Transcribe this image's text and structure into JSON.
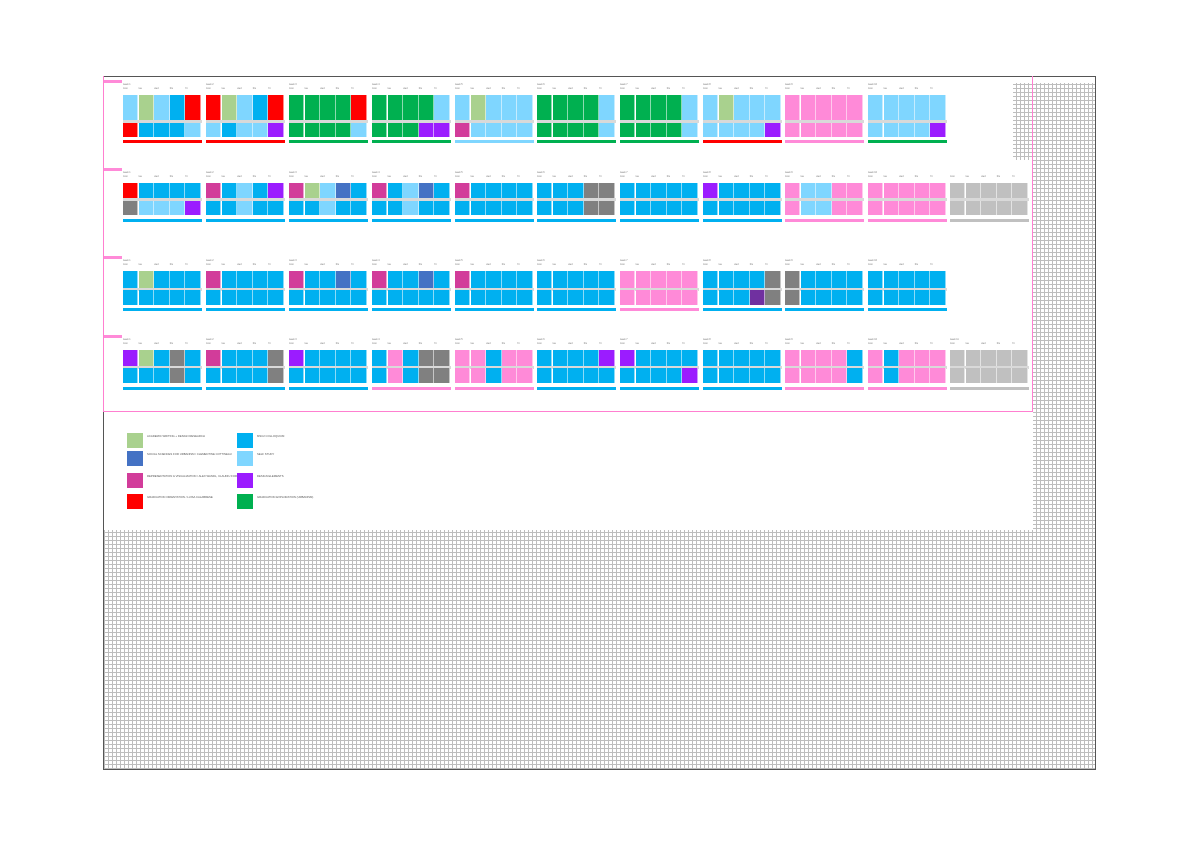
{
  "colors": {
    "A": "#a9d18e",
    "S": "#4472c4",
    "R": "#d23c9a",
    "G": "#ff0000",
    "C": "#00b0f0",
    "L": "#7fd6ff",
    "D": "#9b1cff",
    "E": "#00b050",
    "P": "#ff8ad8",
    "X": "#808080",
    "Y": "#c0c0c0",
    "V": "#7030a0"
  },
  "days": [
    "mon",
    "tue",
    "wed",
    "thu",
    "fri"
  ],
  "rows": [
    {
      "weeks": [
        {
          "label": "week 1",
          "top": "LALCG",
          "bottom": "GCCCL",
          "bar": "G"
        },
        {
          "label": "week 2",
          "top": "GALCG",
          "bottom": "LCLLD",
          "bar": "G"
        },
        {
          "label": "week 3",
          "top": "EEEEG",
          "bottom": "EEEEL",
          "bar": "E"
        },
        {
          "label": "week 4",
          "top": "EEEEL",
          "bottom": "EEEDD",
          "bar": "E"
        },
        {
          "label": "week 5",
          "top": "LALLL",
          "bottom": "RLLLL",
          "bar": "L"
        },
        {
          "label": "week 6",
          "top": "EEEEL",
          "bottom": "EEEEL",
          "bar": "E"
        },
        {
          "label": "week 7",
          "top": "EEEEL",
          "bottom": "EEEEL",
          "bar": "E"
        },
        {
          "label": "week 8",
          "top": "LALLL",
          "bottom": "LLLLD",
          "bar": "G"
        },
        {
          "label": "week 9",
          "top": "PPPPP",
          "bottom": "PPPPP",
          "bar": "P"
        },
        {
          "label": "week 10",
          "top": "LLLLL",
          "bottom": "LLLLD",
          "bar": "E"
        }
      ]
    },
    {
      "weeks": [
        {
          "label": "week 1",
          "top": "GCCCC",
          "bottom": "XLLLD",
          "bar": "C"
        },
        {
          "label": "week 2",
          "top": "RCLCD",
          "bottom": "CCLCC",
          "bar": "C"
        },
        {
          "label": "week 3",
          "top": "RALSC",
          "bottom": "CCLCC",
          "bar": "C"
        },
        {
          "label": "week 4",
          "top": "RCLSC",
          "bottom": "CCLCC",
          "bar": "C"
        },
        {
          "label": "week 5",
          "top": "RCCCC",
          "bottom": "CCCCC",
          "bar": "C"
        },
        {
          "label": "week 6",
          "top": "CCCXX",
          "bottom": "CCCXX",
          "bar": "C"
        },
        {
          "label": "week 7",
          "top": "CCCCC",
          "bottom": "CCCCC",
          "bar": "C"
        },
        {
          "label": "week 8",
          "top": "DCCCC",
          "bottom": "CCCCC",
          "bar": "C"
        },
        {
          "label": "week 9",
          "top": "PLLPP",
          "bottom": "PLLPP",
          "bar": "P"
        },
        {
          "label": "week 10",
          "top": "PPPPP",
          "bottom": "PPPPP",
          "bar": "P"
        },
        {
          "label": "",
          "top": "YYYYY",
          "bottom": "YYYYY",
          "bar": "Y"
        }
      ]
    },
    {
      "weeks": [
        {
          "label": "week 1",
          "top": "CACCC",
          "bottom": "CCCCC",
          "bar": "C"
        },
        {
          "label": "week 2",
          "top": "RCCCC",
          "bottom": "CCCCC",
          "bar": "C"
        },
        {
          "label": "week 3",
          "top": "RCCSC",
          "bottom": "CCCCC",
          "bar": "C"
        },
        {
          "label": "week 4",
          "top": "RCCSC",
          "bottom": "CCCCC",
          "bar": "C"
        },
        {
          "label": "week 5",
          "top": "RCCCC",
          "bottom": "CCCCC",
          "bar": "C"
        },
        {
          "label": "week 6",
          "top": "CCCCC",
          "bottom": "CCCCC",
          "bar": "C"
        },
        {
          "label": "week 7",
          "top": "PPPPP",
          "bottom": "PPPPP",
          "bar": "P"
        },
        {
          "label": "week 8",
          "top": "CCCCX",
          "bottom": "CCCVX",
          "bar": "C"
        },
        {
          "label": "week 9",
          "top": "XCCCC",
          "bottom": "XCCCC",
          "bar": "C"
        },
        {
          "label": "week 10",
          "top": "CCCCC",
          "bottom": "CCCCC",
          "bar": "C"
        }
      ]
    },
    {
      "weeks": [
        {
          "label": "week 1",
          "top": "DACXC",
          "bottom": "CCCXC",
          "bar": "C"
        },
        {
          "label": "week 2",
          "top": "RCCCX",
          "bottom": "CCCCX",
          "bar": "C"
        },
        {
          "label": "week 3",
          "top": "DCCCC",
          "bottom": "CCCCC",
          "bar": "C"
        },
        {
          "label": "week 4",
          "top": "CPCXX",
          "bottom": "CPCXX",
          "bar": "P"
        },
        {
          "label": "week 5",
          "top": "PPCPP",
          "bottom": "PPCPP",
          "bar": "P"
        },
        {
          "label": "week 6",
          "top": "CCCCD",
          "bottom": "CCCCC",
          "bar": "C"
        },
        {
          "label": "week 7",
          "top": "DCCCC",
          "bottom": "CCCCD",
          "bar": "C"
        },
        {
          "label": "week 8",
          "top": "CCCCC",
          "bottom": "CCCCC",
          "bar": "C"
        },
        {
          "label": "week 9",
          "top": "PPPPC",
          "bottom": "PPPPC",
          "bar": "P"
        },
        {
          "label": "week 10",
          "top": "PCPPP",
          "bottom": "PCPPP",
          "bar": "P"
        },
        {
          "label": "week 11",
          "top": "YYYYY",
          "bottom": "YYYYY",
          "bar": "Y"
        }
      ]
    }
  ],
  "legend": [
    {
      "code": "A",
      "label": "ACADEMIC WRITING + DESIGN RESEARCH"
    },
    {
      "code": "S",
      "label": "SOCIAL SCIENCES FOR URBANISM / CLEMENTINE COTTINEAU"
    },
    {
      "code": "R",
      "label": "REPRESENTATION & VISUALIZATION / ALEX WANDL, CLAUDIU FORGACI"
    },
    {
      "code": "G",
      "label": "GRADUATION ORIENTATION / LUISA CALABRESE"
    },
    {
      "code": "C",
      "label": "MSC2 COLLOQUIUM"
    },
    {
      "code": "L",
      "label": "SELF STUDY"
    },
    {
      "code": "D",
      "label": "DESIGN ELEMENTS"
    },
    {
      "code": "E",
      "label": "GRADUATION EXPLORATION (URBANISM)"
    }
  ]
}
